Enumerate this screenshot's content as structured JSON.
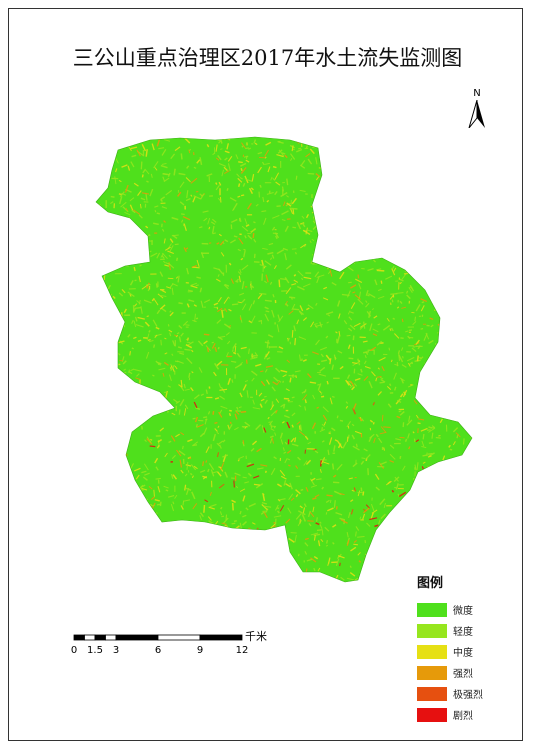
{
  "title": "三公山重点治理区2017年水土流失监测图",
  "north_label": "N",
  "legend": {
    "title": "图例",
    "items": [
      {
        "label": "微度",
        "color": "#4fe01c"
      },
      {
        "label": "轻度",
        "color": "#96e61e"
      },
      {
        "label": "中度",
        "color": "#e6e014"
      },
      {
        "label": "强烈",
        "color": "#e69a0a"
      },
      {
        "label": "极强烈",
        "color": "#e65010"
      },
      {
        "label": "剧烈",
        "color": "#e61010"
      }
    ]
  },
  "scale": {
    "units": "千米",
    "labels": [
      "0",
      "1.5",
      "3",
      "6",
      "9",
      "12"
    ],
    "values": [
      0,
      1.5,
      3,
      6,
      9,
      12
    ]
  }
}
